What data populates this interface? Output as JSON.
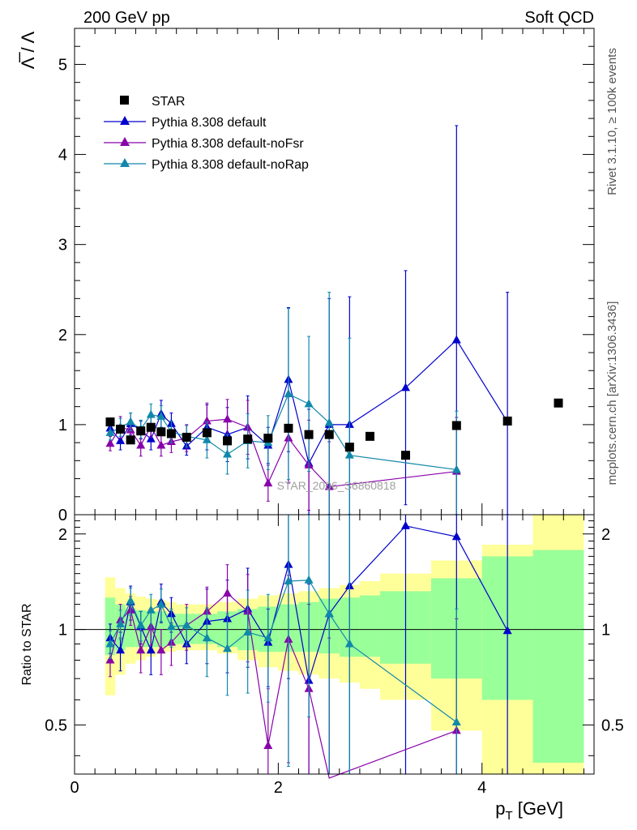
{
  "header": {
    "left_label": "200 GeV pp",
    "right_label": "Soft QCD"
  },
  "side_notes": {
    "rivet": "Rivet 3.1.10, ≥ 100k events",
    "mcplots": "mcplots.cern.ch [arXiv:1306.3436]"
  },
  "watermark": "STAR_2006_S6860818",
  "colors": {
    "star": "#000000",
    "default": "#0000cc",
    "noFsr": "#8800aa",
    "noRap": "#1188aa",
    "band_inner": "#99ff99",
    "band_outer": "#ffff99"
  },
  "chart_data": [
    {
      "type": "scatter",
      "panel": "main",
      "ylabel": "Λ̅ / Λ",
      "xlabel": "p_T [GeV]",
      "xlim": [
        0,
        5.1
      ],
      "ylim": [
        0,
        5.4
      ],
      "yticks": [
        0,
        1,
        2,
        3,
        4,
        5
      ],
      "xticks": [
        0,
        2,
        4
      ],
      "legend": [
        "STAR",
        "Pythia 8.308 default",
        "Pythia 8.308 default-noFsr",
        "Pythia 8.308 default-noRap"
      ],
      "legend_position": "top-left",
      "star": {
        "x": [
          0.35,
          0.45,
          0.55,
          0.65,
          0.75,
          0.85,
          0.95,
          1.1,
          1.3,
          1.5,
          1.7,
          1.9,
          2.1,
          2.3,
          2.5,
          2.7,
          2.9,
          3.25,
          3.75,
          4.25,
          4.75
        ],
        "y": [
          1.03,
          0.95,
          0.83,
          0.93,
          0.97,
          0.92,
          0.9,
          0.86,
          0.91,
          0.82,
          0.84,
          0.85,
          0.96,
          0.89,
          0.89,
          0.75,
          0.87,
          0.66,
          0.99,
          1.04,
          1.24
        ]
      },
      "series": [
        {
          "name": "Pythia 8.308 default",
          "key": "default",
          "x": [
            0.35,
            0.45,
            0.55,
            0.65,
            0.75,
            0.85,
            0.95,
            1.1,
            1.3,
            1.5,
            1.7,
            1.9,
            2.1,
            2.3,
            2.5,
            2.7,
            3.25,
            3.75,
            4.25
          ],
          "y": [
            0.96,
            0.82,
            1.01,
            0.94,
            0.84,
            1.12,
            1.01,
            0.76,
            0.97,
            0.89,
            0.97,
            0.77,
            1.5,
            0.57,
            1.0,
            1.0,
            1.41,
            1.94,
            1.03
          ],
          "err": [
            0.09,
            0.1,
            0.12,
            0.1,
            0.12,
            0.15,
            0.12,
            0.1,
            0.25,
            0.3,
            0.35,
            0.2,
            0.8,
            0.6,
            1.4,
            1.42,
            1.3,
            2.38,
            1.44
          ]
        },
        {
          "name": "Pythia 8.308 default-noFsr",
          "key": "noFsr",
          "x": [
            0.35,
            0.45,
            0.55,
            0.65,
            0.75,
            0.85,
            0.95,
            1.1,
            1.3,
            1.5,
            1.7,
            1.9,
            2.1,
            2.3,
            2.5,
            3.75
          ],
          "y": [
            0.79,
            0.97,
            0.94,
            0.77,
            0.98,
            0.77,
            0.81,
            0.85,
            1.04,
            1.06,
            0.97,
            0.35,
            0.85,
            0.55,
            0.31,
            0.48
          ],
          "err": [
            0.08,
            0.12,
            0.1,
            0.12,
            0.12,
            0.12,
            0.12,
            0.15,
            0.2,
            0.22,
            0.3,
            0.2,
            0.5,
            0.5,
            0.5,
            0.6
          ]
        },
        {
          "name": "Pythia 8.308 default-noRap",
          "key": "noRap",
          "x": [
            0.35,
            0.45,
            0.55,
            0.65,
            0.75,
            0.85,
            0.95,
            1.1,
            1.3,
            1.5,
            1.7,
            1.9,
            2.1,
            2.3,
            2.5,
            2.7,
            3.75
          ],
          "y": [
            0.91,
            0.97,
            1.03,
            0.95,
            1.11,
            1.09,
            0.92,
            0.87,
            0.83,
            0.67,
            0.82,
            0.8,
            1.34,
            1.23,
            1.02,
            0.66,
            0.5
          ],
          "err": [
            0.08,
            0.1,
            0.1,
            0.1,
            0.12,
            0.12,
            0.12,
            0.12,
            0.2,
            0.22,
            0.3,
            0.3,
            0.95,
            0.75,
            1.45,
            1.3,
            0.65
          ]
        }
      ]
    },
    {
      "type": "scatter",
      "panel": "ratio",
      "ylabel": "Ratio to STAR",
      "xlabel": "p_T [GeV]",
      "xlim": [
        0,
        5.1
      ],
      "ylim": [
        0.35,
        2.3
      ],
      "yscale": "log",
      "yticks": [
        0.5,
        1,
        2
      ],
      "xticks": [
        0,
        2,
        4
      ],
      "bands": {
        "edges": [
          0.3,
          0.4,
          0.5,
          0.6,
          0.7,
          0.8,
          0.9,
          1.0,
          1.2,
          1.4,
          1.6,
          1.8,
          2.0,
          2.2,
          2.4,
          2.6,
          2.8,
          3.0,
          3.5,
          4.0,
          4.5,
          5.0
        ],
        "inner": [
          [
            0.83,
            1.26
          ],
          [
            0.86,
            1.2
          ],
          [
            0.88,
            1.16
          ],
          [
            0.88,
            1.15
          ],
          [
            0.88,
            1.14
          ],
          [
            0.88,
            1.14
          ],
          [
            0.89,
            1.12
          ],
          [
            0.9,
            1.12
          ],
          [
            0.9,
            1.12
          ],
          [
            0.88,
            1.14
          ],
          [
            0.86,
            1.16
          ],
          [
            0.85,
            1.18
          ],
          [
            0.85,
            1.2
          ],
          [
            0.85,
            1.22
          ],
          [
            0.84,
            1.25
          ],
          [
            0.82,
            1.26
          ],
          [
            0.82,
            1.28
          ],
          [
            0.78,
            1.32
          ],
          [
            0.7,
            1.45
          ],
          [
            0.6,
            1.7
          ],
          [
            0.38,
            1.78
          ]
        ],
        "outer": [
          [
            0.62,
            1.46
          ],
          [
            0.72,
            1.35
          ],
          [
            0.78,
            1.3
          ],
          [
            0.8,
            1.27
          ],
          [
            0.82,
            1.25
          ],
          [
            0.84,
            1.24
          ],
          [
            0.85,
            1.22
          ],
          [
            0.86,
            1.2
          ],
          [
            0.86,
            1.2
          ],
          [
            0.84,
            1.22
          ],
          [
            0.8,
            1.25
          ],
          [
            0.76,
            1.28
          ],
          [
            0.74,
            1.3
          ],
          [
            0.72,
            1.32
          ],
          [
            0.7,
            1.35
          ],
          [
            0.68,
            1.38
          ],
          [
            0.65,
            1.42
          ],
          [
            0.6,
            1.5
          ],
          [
            0.48,
            1.65
          ],
          [
            0.35,
            1.85
          ],
          [
            0.35,
            2.3
          ]
        ]
      },
      "series": [
        {
          "name": "Pythia 8.308 default",
          "key": "default",
          "x": [
            0.35,
            0.45,
            0.55,
            0.65,
            0.75,
            0.85,
            0.95,
            1.1,
            1.3,
            1.5,
            1.7,
            1.9,
            2.1,
            2.3,
            2.5,
            2.7,
            3.25,
            3.75,
            4.25
          ],
          "y": [
            0.94,
            0.86,
            1.22,
            1.02,
            0.86,
            1.22,
            1.12,
            0.9,
            1.06,
            1.08,
            1.16,
            0.91,
            1.6,
            0.69,
            1.12,
            1.37,
            2.12,
            1.96,
            0.99
          ],
          "err": [
            0.1,
            0.12,
            0.15,
            0.12,
            0.14,
            0.17,
            0.14,
            0.12,
            0.28,
            0.35,
            0.4,
            0.25,
            0.9,
            0.7,
            1.6,
            1.9,
            2.0,
            2.4,
            1.4
          ]
        },
        {
          "name": "Pythia 8.308 default-noFsr",
          "key": "noFsr",
          "x": [
            0.35,
            0.45,
            0.55,
            0.65,
            0.75,
            0.85,
            0.95,
            1.1,
            1.3,
            1.5,
            1.7,
            1.9,
            2.1,
            2.3,
            2.5,
            3.75
          ],
          "y": [
            0.8,
            1.07,
            1.15,
            0.86,
            1.02,
            0.86,
            0.91,
            1.03,
            1.14,
            1.3,
            1.14,
            0.43,
            0.93,
            0.65,
            0.34,
            0.48
          ],
          "err": [
            0.09,
            0.13,
            0.12,
            0.13,
            0.13,
            0.14,
            0.14,
            0.17,
            0.22,
            0.3,
            0.35,
            0.22,
            0.55,
            0.55,
            0.6,
            0.6
          ]
        },
        {
          "name": "Pythia 8.308 default-noRap",
          "key": "noRap",
          "x": [
            0.35,
            0.45,
            0.55,
            0.65,
            0.75,
            0.85,
            0.95,
            1.1,
            1.3,
            1.5,
            1.7,
            1.9,
            2.1,
            2.3,
            2.5,
            2.7,
            3.75
          ],
          "y": [
            0.9,
            1.04,
            1.23,
            1.03,
            1.15,
            1.2,
            1.02,
            1.03,
            0.94,
            0.87,
            0.98,
            0.94,
            1.42,
            1.43,
            1.12,
            0.9,
            0.51
          ],
          "err": [
            0.09,
            0.11,
            0.12,
            0.11,
            0.14,
            0.14,
            0.14,
            0.14,
            0.23,
            0.25,
            0.35,
            0.35,
            1.05,
            0.9,
            1.65,
            1.6,
            0.65
          ]
        }
      ]
    }
  ]
}
